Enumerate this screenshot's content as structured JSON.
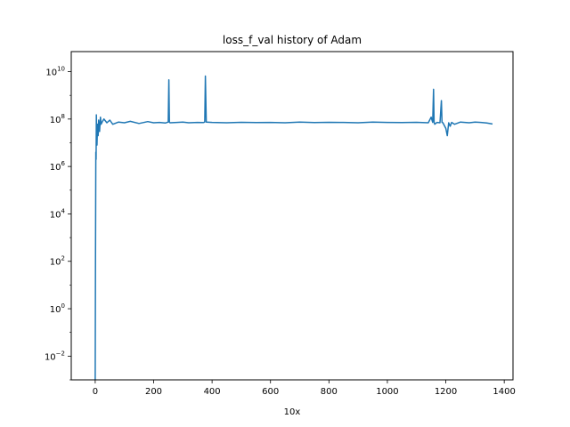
{
  "chart_data": {
    "type": "line",
    "title": "loss_f_val history of Adam",
    "xlabel": "10x",
    "ylabel": "",
    "yscale": "log",
    "xlim": [
      -82,
      1430
    ],
    "ylim": [
      0.001,
      70000000000
    ],
    "grid": false,
    "legend": "none",
    "xticks": [
      0,
      200,
      400,
      600,
      800,
      1000,
      1200,
      1400
    ],
    "xtick_labels": [
      "0",
      "200",
      "400",
      "600",
      "800",
      "1000",
      "1200",
      "1400"
    ],
    "yticks": [
      0.01,
      1,
      100,
      10000,
      1000000,
      100000000,
      10000000000
    ],
    "ytick_labels": [
      {
        "base": "10",
        "exp": "−2"
      },
      {
        "base": "10",
        "exp": "0"
      },
      {
        "base": "10",
        "exp": "2"
      },
      {
        "base": "10",
        "exp": "4"
      },
      {
        "base": "10",
        "exp": "6"
      },
      {
        "base": "10",
        "exp": "8"
      },
      {
        "base": "10",
        "exp": "10"
      }
    ],
    "series": [
      {
        "color": "#1f77b4",
        "x": [
          0,
          1,
          2,
          3,
          4,
          5,
          6,
          8,
          10,
          12,
          15,
          18,
          20,
          25,
          30,
          40,
          50,
          60,
          80,
          100,
          120,
          150,
          180,
          200,
          220,
          240,
          250,
          252,
          254,
          256,
          280,
          300,
          320,
          350,
          370,
          375,
          377,
          380,
          400,
          450,
          500,
          550,
          600,
          650,
          700,
          750,
          800,
          850,
          900,
          950,
          1000,
          1050,
          1100,
          1140,
          1150,
          1155,
          1158,
          1160,
          1162,
          1170,
          1180,
          1185,
          1187,
          1190,
          1200,
          1205,
          1210,
          1215,
          1220,
          1230,
          1250,
          1280,
          1300,
          1320,
          1340,
          1360
        ],
        "y": [
          0.001,
          50,
          4000000,
          2000000,
          150000000,
          40000000,
          8000000,
          60000000,
          20000000,
          90000000,
          30000000,
          120000000,
          60000000,
          80000000,
          100000000,
          70000000,
          90000000,
          60000000,
          75000000,
          70000000,
          80000000,
          65000000,
          78000000,
          70000000,
          72000000,
          68000000,
          75000000,
          4500000000,
          75000000,
          70000000,
          72000000,
          74000000,
          70000000,
          72000000,
          71000000,
          75000000,
          6500000000,
          75000000,
          72000000,
          70000000,
          73000000,
          71000000,
          72000000,
          70000000,
          74000000,
          71000000,
          73000000,
          72000000,
          70000000,
          74000000,
          72000000,
          71000000,
          73000000,
          70000000,
          120000000,
          72000000,
          1800000000,
          75000000,
          60000000,
          72000000,
          70000000,
          600000000,
          72000000,
          70000000,
          40000000,
          20000000,
          70000000,
          50000000,
          72000000,
          60000000,
          75000000,
          70000000,
          74000000,
          72000000,
          68000000,
          62000000
        ]
      }
    ]
  }
}
